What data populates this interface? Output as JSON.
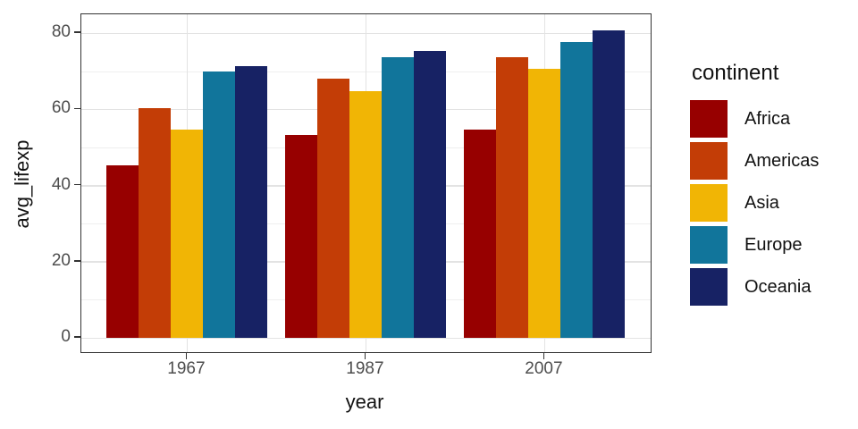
{
  "chart_data": {
    "type": "bar",
    "title": "",
    "xlabel": "year",
    "ylabel": "avg_lifexp",
    "categories": [
      "1967",
      "1987",
      "2007"
    ],
    "series": [
      {
        "name": "Africa",
        "color": "#970000",
        "values": [
          45.3,
          53.3,
          54.8
        ]
      },
      {
        "name": "Americas",
        "color": "#C33D06",
        "values": [
          60.4,
          68.1,
          73.6
        ]
      },
      {
        "name": "Asia",
        "color": "#F1B505",
        "values": [
          54.7,
          64.9,
          70.7
        ]
      },
      {
        "name": "Europe",
        "color": "#11759B",
        "values": [
          69.9,
          73.6,
          77.6
        ]
      },
      {
        "name": "Oceania",
        "color": "#172264",
        "values": [
          71.3,
          75.3,
          80.7
        ]
      }
    ],
    "ylim": [
      0,
      80
    ],
    "y_major_ticks": [
      0,
      20,
      40,
      60,
      80
    ],
    "y_minor_ticks": [
      10,
      30,
      50,
      70
    ],
    "legend_title": "continent",
    "legend_position": "right",
    "grid": "on",
    "background": "#ffffff",
    "gridline_color": "#e3e3e3",
    "panel_border_color": "#333333",
    "tick_label_color": "#4d4d4d"
  }
}
